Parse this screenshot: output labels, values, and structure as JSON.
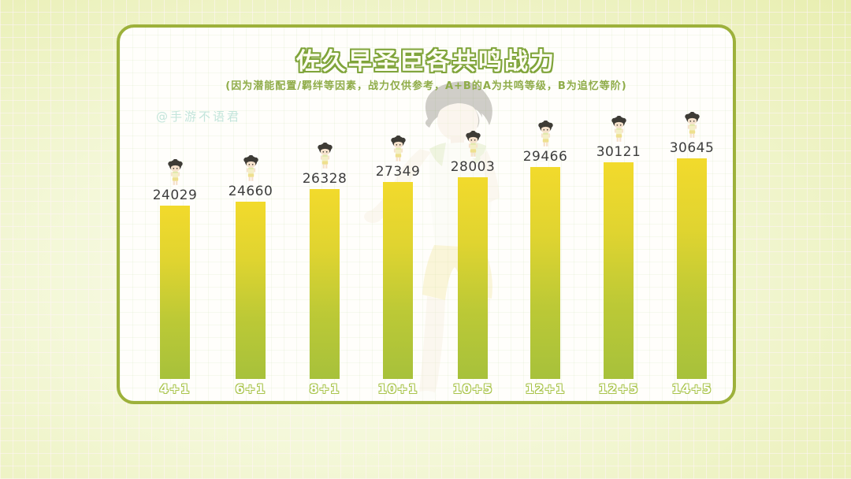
{
  "watermark": "@手游不语君",
  "chart_data": {
    "type": "bar",
    "title": "佐久早圣臣各共鸣战力",
    "subtitle": "(因为潜能配置/羁绊等因素，战力仅供参考，A+B的A为共鸣等级，B为追忆等阶)",
    "categories": [
      "4+1",
      "6+1",
      "8+1",
      "10+1",
      "10+5",
      "12+1",
      "12+5",
      "14+5"
    ],
    "values": [
      24029,
      24660,
      26328,
      27349,
      28003,
      29466,
      30121,
      30645
    ],
    "ylim": [
      0,
      30645
    ],
    "grid": false,
    "legend_position": "none",
    "value_labels": "above-bars",
    "bar_marker": "chibi-character",
    "colors": {
      "bar_top": "#f2da2c",
      "bar_bottom": "#a7c13b",
      "card_border": "#9db13b",
      "title_outline": "#7fa43a",
      "subtitle_text": "#8fac49",
      "value_label_text": "#3d3d3d",
      "category_label_outline": "#a9c44b",
      "watermark_text": "#c3e5db",
      "page_background": "#eef3c4"
    }
  }
}
